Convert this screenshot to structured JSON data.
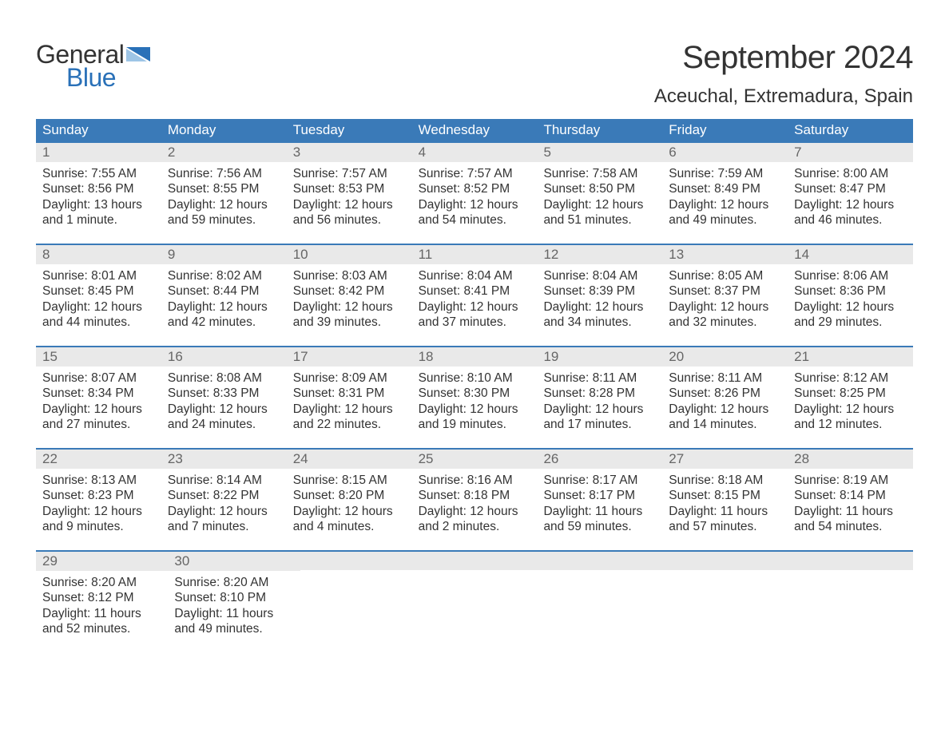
{
  "brand": {
    "word1": "General",
    "word2": "Blue"
  },
  "title": "September 2024",
  "location": "Aceuchal, Extremadura, Spain",
  "colors": {
    "header_bg": "#3a7ab8",
    "header_text": "#ffffff",
    "daynum_bg": "#e9e9e9",
    "daynum_text": "#666666",
    "body_text": "#333333",
    "accent": "#2a71b8",
    "row_border": "#3a7ab8",
    "page_bg": "#ffffff"
  },
  "typography": {
    "title_fontsize": 40,
    "location_fontsize": 24,
    "dow_fontsize": 17,
    "daynum_fontsize": 17,
    "body_fontsize": 15.5,
    "logo_fontsize": 32
  },
  "layout": {
    "columns": 7,
    "rows": 5,
    "row_min_height": 128,
    "dow_row_height": 28
  },
  "dow": [
    "Sunday",
    "Monday",
    "Tuesday",
    "Wednesday",
    "Thursday",
    "Friday",
    "Saturday"
  ],
  "weeks": [
    [
      {
        "n": "1",
        "sunrise": "7:55 AM",
        "sunset": "8:56 PM",
        "daylight": "13 hours and 1 minute."
      },
      {
        "n": "2",
        "sunrise": "7:56 AM",
        "sunset": "8:55 PM",
        "daylight": "12 hours and 59 minutes."
      },
      {
        "n": "3",
        "sunrise": "7:57 AM",
        "sunset": "8:53 PM",
        "daylight": "12 hours and 56 minutes."
      },
      {
        "n": "4",
        "sunrise": "7:57 AM",
        "sunset": "8:52 PM",
        "daylight": "12 hours and 54 minutes."
      },
      {
        "n": "5",
        "sunrise": "7:58 AM",
        "sunset": "8:50 PM",
        "daylight": "12 hours and 51 minutes."
      },
      {
        "n": "6",
        "sunrise": "7:59 AM",
        "sunset": "8:49 PM",
        "daylight": "12 hours and 49 minutes."
      },
      {
        "n": "7",
        "sunrise": "8:00 AM",
        "sunset": "8:47 PM",
        "daylight": "12 hours and 46 minutes."
      }
    ],
    [
      {
        "n": "8",
        "sunrise": "8:01 AM",
        "sunset": "8:45 PM",
        "daylight": "12 hours and 44 minutes."
      },
      {
        "n": "9",
        "sunrise": "8:02 AM",
        "sunset": "8:44 PM",
        "daylight": "12 hours and 42 minutes."
      },
      {
        "n": "10",
        "sunrise": "8:03 AM",
        "sunset": "8:42 PM",
        "daylight": "12 hours and 39 minutes."
      },
      {
        "n": "11",
        "sunrise": "8:04 AM",
        "sunset": "8:41 PM",
        "daylight": "12 hours and 37 minutes."
      },
      {
        "n": "12",
        "sunrise": "8:04 AM",
        "sunset": "8:39 PM",
        "daylight": "12 hours and 34 minutes."
      },
      {
        "n": "13",
        "sunrise": "8:05 AM",
        "sunset": "8:37 PM",
        "daylight": "12 hours and 32 minutes."
      },
      {
        "n": "14",
        "sunrise": "8:06 AM",
        "sunset": "8:36 PM",
        "daylight": "12 hours and 29 minutes."
      }
    ],
    [
      {
        "n": "15",
        "sunrise": "8:07 AM",
        "sunset": "8:34 PM",
        "daylight": "12 hours and 27 minutes."
      },
      {
        "n": "16",
        "sunrise": "8:08 AM",
        "sunset": "8:33 PM",
        "daylight": "12 hours and 24 minutes."
      },
      {
        "n": "17",
        "sunrise": "8:09 AM",
        "sunset": "8:31 PM",
        "daylight": "12 hours and 22 minutes."
      },
      {
        "n": "18",
        "sunrise": "8:10 AM",
        "sunset": "8:30 PM",
        "daylight": "12 hours and 19 minutes."
      },
      {
        "n": "19",
        "sunrise": "8:11 AM",
        "sunset": "8:28 PM",
        "daylight": "12 hours and 17 minutes."
      },
      {
        "n": "20",
        "sunrise": "8:11 AM",
        "sunset": "8:26 PM",
        "daylight": "12 hours and 14 minutes."
      },
      {
        "n": "21",
        "sunrise": "8:12 AM",
        "sunset": "8:25 PM",
        "daylight": "12 hours and 12 minutes."
      }
    ],
    [
      {
        "n": "22",
        "sunrise": "8:13 AM",
        "sunset": "8:23 PM",
        "daylight": "12 hours and 9 minutes."
      },
      {
        "n": "23",
        "sunrise": "8:14 AM",
        "sunset": "8:22 PM",
        "daylight": "12 hours and 7 minutes."
      },
      {
        "n": "24",
        "sunrise": "8:15 AM",
        "sunset": "8:20 PM",
        "daylight": "12 hours and 4 minutes."
      },
      {
        "n": "25",
        "sunrise": "8:16 AM",
        "sunset": "8:18 PM",
        "daylight": "12 hours and 2 minutes."
      },
      {
        "n": "26",
        "sunrise": "8:17 AM",
        "sunset": "8:17 PM",
        "daylight": "11 hours and 59 minutes."
      },
      {
        "n": "27",
        "sunrise": "8:18 AM",
        "sunset": "8:15 PM",
        "daylight": "11 hours and 57 minutes."
      },
      {
        "n": "28",
        "sunrise": "8:19 AM",
        "sunset": "8:14 PM",
        "daylight": "11 hours and 54 minutes."
      }
    ],
    [
      {
        "n": "29",
        "sunrise": "8:20 AM",
        "sunset": "8:12 PM",
        "daylight": "11 hours and 52 minutes."
      },
      {
        "n": "30",
        "sunrise": "8:20 AM",
        "sunset": "8:10 PM",
        "daylight": "11 hours and 49 minutes."
      },
      null,
      null,
      null,
      null,
      null
    ]
  ],
  "labels": {
    "sunrise_prefix": "Sunrise: ",
    "sunset_prefix": "Sunset: ",
    "daylight_prefix": "Daylight: "
  }
}
